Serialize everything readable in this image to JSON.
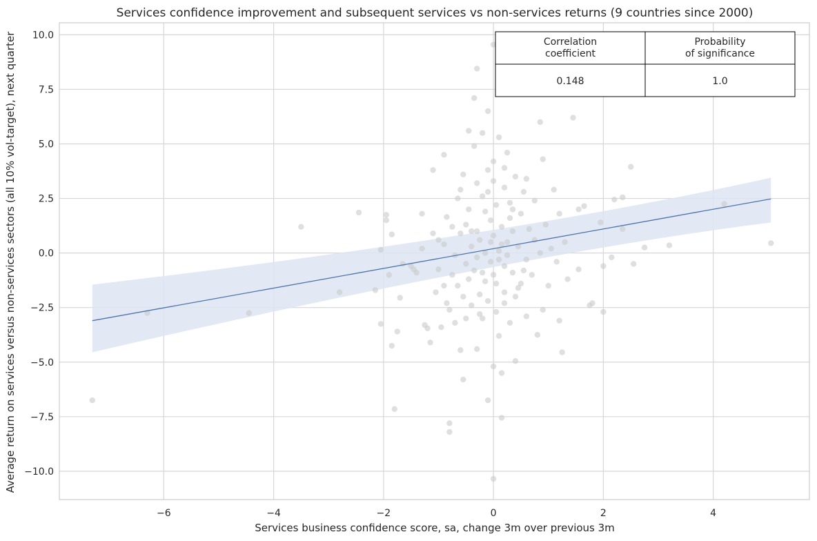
{
  "chart_data": {
    "type": "scatter",
    "title": "Services confidence improvement and subsequent services vs non-services returns (9 countries since 2000)",
    "xlabel": "Services business confidence score, sa, change 3m over previous 3m",
    "ylabel": "Average return on services versus non-services sectors (all 10% vol-target), next quarter",
    "xlim": [
      -7.9,
      5.75
    ],
    "ylim": [
      -11.3,
      10.55
    ],
    "xticks": [
      -6,
      -4,
      -2,
      0,
      2,
      4
    ],
    "xtick_labels": [
      "−6",
      "−4",
      "−2",
      "0",
      "2",
      "4"
    ],
    "yticks": [
      -10,
      -7.5,
      -5,
      -2.5,
      0,
      2.5,
      5,
      7.5,
      10
    ],
    "ytick_labels": [
      "−10.0",
      "−7.5",
      "−5.0",
      "−2.5",
      "0.0",
      "2.5",
      "5.0",
      "7.5",
      "10.0"
    ],
    "grid": true,
    "colors": {
      "points": "#c9c9c9",
      "regression_line": "#4c72b0",
      "confidence_band": "#dde5f2",
      "grid": "#d6d6d6"
    },
    "regression": {
      "x_range": [
        -7.3,
        5.05
      ],
      "y_range": [
        -3.1,
        2.48
      ],
      "ci_low": [
        -4.55,
        1.4
      ],
      "ci_high": [
        -1.45,
        3.45
      ]
    },
    "points": [
      [
        -7.3,
        -6.75
      ],
      [
        -6.3,
        -2.75
      ],
      [
        -4.45,
        -2.75
      ],
      [
        -3.5,
        1.2
      ],
      [
        -2.8,
        -1.8
      ],
      [
        -2.45,
        1.85
      ],
      [
        -2.15,
        -1.7
      ],
      [
        -2.05,
        0.15
      ],
      [
        -2.05,
        -3.25
      ],
      [
        -1.95,
        1.75
      ],
      [
        -1.95,
        1.5
      ],
      [
        -1.9,
        -1.0
      ],
      [
        -1.85,
        0.85
      ],
      [
        -1.85,
        -4.25
      ],
      [
        -1.8,
        -7.15
      ],
      [
        -1.75,
        -3.6
      ],
      [
        -1.7,
        -2.05
      ],
      [
        -1.65,
        -0.5
      ],
      [
        -1.5,
        -0.6
      ],
      [
        -1.45,
        -0.75
      ],
      [
        -1.4,
        -0.9
      ],
      [
        -1.3,
        1.8
      ],
      [
        -1.3,
        0.2
      ],
      [
        -1.25,
        -3.3
      ],
      [
        -1.2,
        -3.45
      ],
      [
        -1.15,
        -4.1
      ],
      [
        -1.1,
        3.8
      ],
      [
        -1.1,
        0.9
      ],
      [
        -1.05,
        -1.8
      ],
      [
        -1.0,
        -0.75
      ],
      [
        -1.0,
        0.6
      ],
      [
        -0.95,
        -3.4
      ],
      [
        -0.9,
        4.5
      ],
      [
        -0.9,
        0.4
      ],
      [
        -0.9,
        -1.5
      ],
      [
        -0.85,
        1.65
      ],
      [
        -0.85,
        -2.3
      ],
      [
        -0.8,
        -7.8
      ],
      [
        -0.8,
        -8.2
      ],
      [
        -0.8,
        -2.6
      ],
      [
        -0.75,
        -1.0
      ],
      [
        -0.75,
        1.2
      ],
      [
        -0.7,
        -0.1
      ],
      [
        -0.7,
        -3.2
      ],
      [
        -0.65,
        2.5
      ],
      [
        -0.65,
        -1.5
      ],
      [
        -0.6,
        -4.45
      ],
      [
        -0.6,
        0.9
      ],
      [
        -0.55,
        3.6
      ],
      [
        -0.55,
        -5.8
      ],
      [
        -0.55,
        -2.0
      ],
      [
        -0.5,
        1.3
      ],
      [
        -0.5,
        -0.5
      ],
      [
        -0.5,
        -3.0
      ],
      [
        -0.45,
        5.6
      ],
      [
        -0.45,
        2.0
      ],
      [
        -0.45,
        -1.2
      ],
      [
        -0.4,
        0.3
      ],
      [
        -0.4,
        -2.4
      ],
      [
        -0.35,
        7.1
      ],
      [
        -0.35,
        4.9
      ],
      [
        -0.35,
        -0.8
      ],
      [
        -0.3,
        8.45
      ],
      [
        -0.3,
        3.2
      ],
      [
        -0.3,
        1.0
      ],
      [
        -0.3,
        -4.4
      ],
      [
        -0.25,
        -1.9
      ],
      [
        -0.25,
        0.6
      ],
      [
        -0.2,
        5.5
      ],
      [
        -0.2,
        2.6
      ],
      [
        -0.2,
        -3.0
      ],
      [
        -0.15,
        0.0
      ],
      [
        -0.15,
        -1.3
      ],
      [
        -0.1,
        6.5
      ],
      [
        -0.1,
        3.8
      ],
      [
        -0.1,
        -6.75
      ],
      [
        -0.1,
        -2.2
      ],
      [
        -0.05,
        1.5
      ],
      [
        -0.05,
        -0.4
      ],
      [
        0.0,
        9.55
      ],
      [
        0.0,
        4.2
      ],
      [
        0.0,
        -10.35
      ],
      [
        0.0,
        -5.2
      ],
      [
        0.0,
        0.8
      ],
      [
        0.0,
        -1.0
      ],
      [
        0.05,
        2.2
      ],
      [
        0.05,
        -2.7
      ],
      [
        0.1,
        5.3
      ],
      [
        0.1,
        0.1
      ],
      [
        0.1,
        -3.8
      ],
      [
        0.15,
        1.2
      ],
      [
        0.15,
        -7.55
      ],
      [
        0.15,
        -5.5
      ],
      [
        0.2,
        3.0
      ],
      [
        0.2,
        -0.6
      ],
      [
        0.2,
        -1.8
      ],
      [
        0.25,
        4.6
      ],
      [
        0.25,
        0.5
      ],
      [
        0.3,
        2.3
      ],
      [
        0.3,
        -3.2
      ],
      [
        0.35,
        1.0
      ],
      [
        0.35,
        -0.9
      ],
      [
        0.4,
        3.5
      ],
      [
        0.4,
        -4.95
      ],
      [
        0.4,
        -2.0
      ],
      [
        0.45,
        0.3
      ],
      [
        0.5,
        1.8
      ],
      [
        0.5,
        -1.4
      ],
      [
        0.55,
        2.8
      ],
      [
        0.6,
        -0.3
      ],
      [
        0.6,
        -2.9
      ],
      [
        0.65,
        1.1
      ],
      [
        0.7,
        -1.0
      ],
      [
        0.75,
        2.4
      ],
      [
        0.75,
        0.6
      ],
      [
        0.8,
        -3.75
      ],
      [
        0.85,
        6.0
      ],
      [
        0.85,
        0.0
      ],
      [
        0.9,
        4.3
      ],
      [
        0.9,
        -2.6
      ],
      [
        0.95,
        1.3
      ],
      [
        1.0,
        -1.5
      ],
      [
        1.05,
        0.2
      ],
      [
        1.1,
        2.9
      ],
      [
        1.15,
        -0.4
      ],
      [
        1.2,
        1.8
      ],
      [
        1.2,
        -3.1
      ],
      [
        1.25,
        -4.55
      ],
      [
        1.3,
        0.5
      ],
      [
        1.35,
        -1.2
      ],
      [
        1.45,
        6.2
      ],
      [
        1.55,
        2.0
      ],
      [
        1.55,
        -0.75
      ],
      [
        1.65,
        2.15
      ],
      [
        1.75,
        -2.4
      ],
      [
        1.8,
        -2.3
      ],
      [
        1.95,
        1.4
      ],
      [
        2.0,
        -0.6
      ],
      [
        2.0,
        -2.7
      ],
      [
        2.15,
        -0.2
      ],
      [
        2.2,
        2.45
      ],
      [
        2.35,
        2.55
      ],
      [
        2.35,
        1.1
      ],
      [
        2.5,
        3.95
      ],
      [
        2.55,
        -0.5
      ],
      [
        2.75,
        0.25
      ],
      [
        3.2,
        0.35
      ],
      [
        4.2,
        2.25
      ],
      [
        5.05,
        0.45
      ],
      [
        -0.3,
        -0.2
      ],
      [
        -0.2,
        -0.9
      ],
      [
        0.1,
        -0.3
      ],
      [
        0.25,
        -0.1
      ],
      [
        0.15,
        0.4
      ],
      [
        -0.05,
        0.5
      ],
      [
        0.3,
        1.6
      ],
      [
        -0.15,
        1.9
      ],
      [
        0.05,
        -1.4
      ],
      [
        0.2,
        -2.3
      ],
      [
        -0.25,
        -2.8
      ],
      [
        0.45,
        -1.6
      ],
      [
        0.55,
        -0.8
      ],
      [
        -0.4,
        1.0
      ],
      [
        0.35,
        2.0
      ],
      [
        -0.1,
        2.8
      ],
      [
        0.0,
        3.3
      ],
      [
        0.2,
        3.9
      ],
      [
        0.6,
        3.4
      ],
      [
        -0.6,
        2.9
      ]
    ],
    "table": {
      "headers": [
        "Correlation\ncoefficient",
        "Probability\nof significance"
      ],
      "values": [
        "0.148",
        "1.0"
      ]
    }
  }
}
